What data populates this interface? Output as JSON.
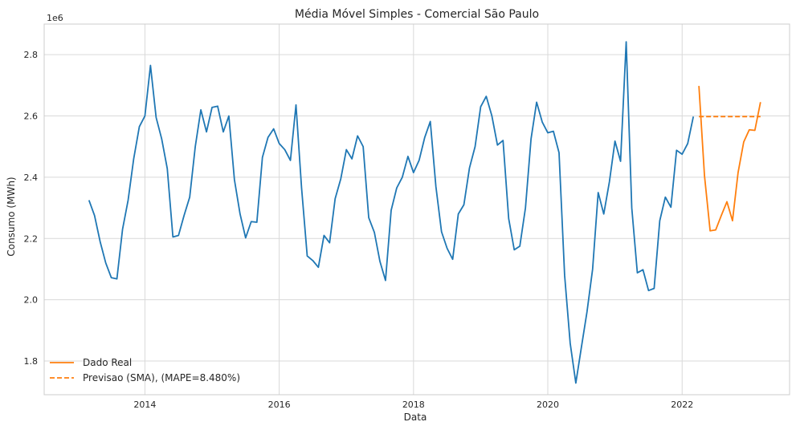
{
  "chart_data": {
    "type": "line",
    "title": "Média Móvel Simples - Comercial São Paulo",
    "xlabel": "Data",
    "ylabel": "Consumo (MWh)",
    "y_multiplier_label": "1e6",
    "xlim": [
      2012.5,
      2023.6
    ],
    "ylim": [
      1.69,
      2.9
    ],
    "x_ticks": [
      2014,
      2016,
      2018,
      2020,
      2022
    ],
    "y_ticks": [
      1.8,
      2.0,
      2.2,
      2.4,
      2.6,
      2.8
    ],
    "y_tick_labels": [
      "1.8",
      "2.0",
      "2.2",
      "2.4",
      "2.6",
      "2.8"
    ],
    "grid": true,
    "legend_position": "lower-left",
    "colors": {
      "history": "#1f77b4",
      "actual": "#ff7f0e",
      "forecast": "#ff7f0e"
    },
    "series": [
      {
        "role": "history",
        "x": [
          2013.167,
          2013.25,
          2013.333,
          2013.417,
          2013.5,
          2013.583,
          2013.667,
          2013.75,
          2013.833,
          2013.917,
          2014.0,
          2014.083,
          2014.167,
          2014.25,
          2014.333,
          2014.417,
          2014.5,
          2014.583,
          2014.667,
          2014.75,
          2014.833,
          2014.917,
          2015.0,
          2015.083,
          2015.167,
          2015.25,
          2015.333,
          2015.417,
          2015.5,
          2015.583,
          2015.667,
          2015.75,
          2015.833,
          2015.917,
          2016.0,
          2016.083,
          2016.167,
          2016.25,
          2016.333,
          2016.417,
          2016.5,
          2016.583,
          2016.667,
          2016.75,
          2016.833,
          2016.917,
          2017.0,
          2017.083,
          2017.167,
          2017.25,
          2017.333,
          2017.417,
          2017.5,
          2017.583,
          2017.667,
          2017.75,
          2017.833,
          2017.917,
          2018.0,
          2018.083,
          2018.167,
          2018.25,
          2018.333,
          2018.417,
          2018.5,
          2018.583,
          2018.667,
          2018.75,
          2018.833,
          2018.917,
          2019.0,
          2019.083,
          2019.167,
          2019.25,
          2019.333,
          2019.417,
          2019.5,
          2019.583,
          2019.667,
          2019.75,
          2019.833,
          2019.917,
          2020.0,
          2020.083,
          2020.167,
          2020.25,
          2020.333,
          2020.417,
          2020.5,
          2020.583,
          2020.667,
          2020.75,
          2020.833,
          2020.917,
          2021.0,
          2021.083,
          2021.167,
          2021.25,
          2021.333,
          2021.417,
          2021.5,
          2021.583,
          2021.667,
          2021.75,
          2021.833,
          2021.917,
          2022.0,
          2022.083,
          2022.167
        ],
        "values": [
          2.325,
          2.275,
          2.19,
          2.12,
          2.072,
          2.068,
          2.23,
          2.325,
          2.46,
          2.565,
          2.6,
          2.765,
          2.595,
          2.525,
          2.428,
          2.205,
          2.21,
          2.275,
          2.335,
          2.5,
          2.62,
          2.548,
          2.628,
          2.632,
          2.548,
          2.6,
          2.392,
          2.28,
          2.202,
          2.255,
          2.253,
          2.465,
          2.53,
          2.558,
          2.51,
          2.49,
          2.455,
          2.636,
          2.365,
          2.143,
          2.128,
          2.106,
          2.21,
          2.186,
          2.33,
          2.395,
          2.49,
          2.46,
          2.535,
          2.5,
          2.268,
          2.22,
          2.125,
          2.063,
          2.292,
          2.365,
          2.4,
          2.468,
          2.415,
          2.455,
          2.53,
          2.582,
          2.37,
          2.222,
          2.168,
          2.132,
          2.28,
          2.31,
          2.43,
          2.5,
          2.63,
          2.664,
          2.6,
          2.505,
          2.52,
          2.265,
          2.163,
          2.175,
          2.3,
          2.525,
          2.645,
          2.58,
          2.545,
          2.55,
          2.48,
          2.08,
          1.858,
          1.728,
          1.845,
          1.96,
          2.1,
          2.35,
          2.28,
          2.385,
          2.518,
          2.452,
          2.842,
          2.3,
          2.088,
          2.098,
          2.03,
          2.037,
          2.258,
          2.335,
          2.302,
          2.488,
          2.475,
          2.51,
          2.598
        ]
      },
      {
        "name": "Dado Real",
        "role": "actual",
        "x": [
          2022.25,
          2022.333,
          2022.417,
          2022.5,
          2022.583,
          2022.667,
          2022.75,
          2022.833,
          2022.917,
          2023.0,
          2023.083,
          2023.167
        ],
        "values": [
          2.698,
          2.405,
          2.225,
          2.228,
          2.275,
          2.32,
          2.258,
          2.415,
          2.515,
          2.555,
          2.553,
          2.645
        ]
      },
      {
        "name": "Previsao (SMA), (MAPE=8.480%)",
        "role": "forecast",
        "x": [
          2022.25,
          2022.333,
          2022.417,
          2022.5,
          2022.583,
          2022.667,
          2022.75,
          2022.833,
          2022.917,
          2023.0,
          2023.083,
          2023.167
        ],
        "values": [
          2.598,
          2.598,
          2.598,
          2.598,
          2.598,
          2.598,
          2.598,
          2.598,
          2.598,
          2.598,
          2.598,
          2.598
        ]
      }
    ]
  }
}
